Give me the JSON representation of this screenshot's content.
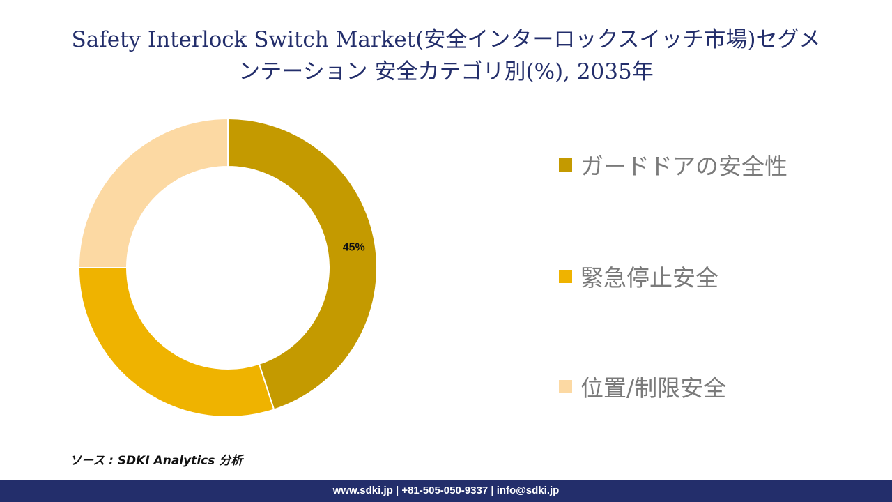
{
  "title_line1": "Safety Interlock Switch Market(安全インターロックスイッチ市場)セグメ",
  "title_line2": "ンテーション 安全カテゴリ別(%), 2035年",
  "source": "ソース : SDKI Analytics 分析",
  "footer": "www.sdki.jp | +81-505-050-9337 | info@sdki.jp",
  "colors": {
    "title": "#232e6b",
    "footer_bg": "#232e6b",
    "legend_text": "#7a7a7a"
  },
  "chart_data": {
    "type": "pie",
    "variant": "donut",
    "legend_position": "right",
    "categories": [
      "ガードドアの安全性",
      "緊急停止安全",
      "位置/制限安全"
    ],
    "values": [
      45,
      30,
      25
    ],
    "colors": [
      "#c49a00",
      "#efb300",
      "#fcd9a3"
    ],
    "data_labels": [
      "45%",
      "",
      ""
    ]
  }
}
